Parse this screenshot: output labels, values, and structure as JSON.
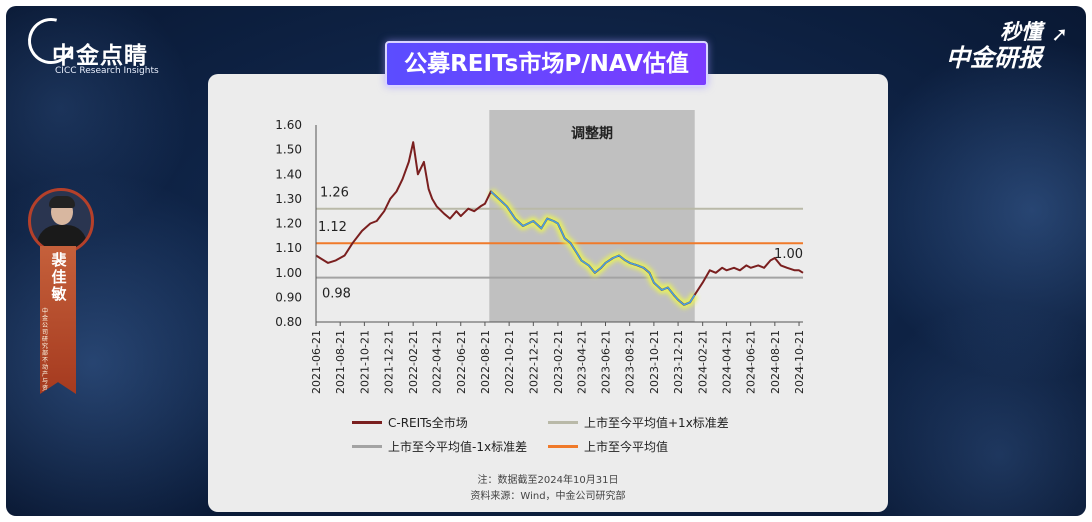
{
  "header": {
    "logo_cn": "中金点睛",
    "logo_en": "CICC Research Insights",
    "brand_line1": "秒懂",
    "brand_line2": "中金研报"
  },
  "presenter": {
    "name": "裴佳敏",
    "certificate": "中金公司研究部不动产与资产服务分析师 SAC执业证书编号：S0080523050003"
  },
  "title": "公募REITs市场P/NAV估值",
  "colors": {
    "series_main": "#7a1f1f",
    "band_upper": "#b9b9a8",
    "band_lower": "#a3a3a3",
    "mean": "#f07a2a",
    "shade": "#b8b8b8",
    "highlight": "#e8f25a",
    "title_bg": "#6a46ff"
  },
  "chart_data": {
    "type": "line",
    "title": "",
    "xlabel": "",
    "ylabel": "",
    "ylim": [
      0.8,
      1.6
    ],
    "yticks": [
      "1.60",
      "1.50",
      "1.40",
      "1.30",
      "1.20",
      "1.10",
      "1.00",
      "0.90",
      "0.80"
    ],
    "x_ticks": [
      "2021-06-21",
      "2021-08-21",
      "2021-10-21",
      "2021-12-21",
      "2022-02-21",
      "2022-04-21",
      "2022-06-21",
      "2022-08-21",
      "2022-10-21",
      "2022-12-21",
      "2023-02-21",
      "2023-04-21",
      "2023-06-21",
      "2023-08-21",
      "2023-10-21",
      "2023-12-21",
      "2024-02-21",
      "2024-04-21",
      "2024-06-21",
      "2024-08-21",
      "2024-10-21"
    ],
    "x_range": [
      "2021-06-21",
      "2024-10-31"
    ],
    "shaded_region": {
      "label": "调整期",
      "start": "2022-09-01",
      "end": "2024-02-01"
    },
    "series": [
      {
        "name": "C-REITs全市场",
        "points": [
          [
            "2021-06-21",
            1.07
          ],
          [
            "2021-07-01",
            1.06
          ],
          [
            "2021-07-21",
            1.04
          ],
          [
            "2021-08-10",
            1.05
          ],
          [
            "2021-09-01",
            1.07
          ],
          [
            "2021-09-21",
            1.12
          ],
          [
            "2021-10-15",
            1.17
          ],
          [
            "2021-11-05",
            1.2
          ],
          [
            "2021-11-21",
            1.21
          ],
          [
            "2021-12-10",
            1.25
          ],
          [
            "2021-12-25",
            1.3
          ],
          [
            "2022-01-10",
            1.33
          ],
          [
            "2022-01-25",
            1.38
          ],
          [
            "2022-02-10",
            1.45
          ],
          [
            "2022-02-21",
            1.53
          ],
          [
            "2022-03-05",
            1.4
          ],
          [
            "2022-03-20",
            1.45
          ],
          [
            "2022-04-01",
            1.34
          ],
          [
            "2022-04-10",
            1.3
          ],
          [
            "2022-04-21",
            1.27
          ],
          [
            "2022-05-10",
            1.24
          ],
          [
            "2022-05-25",
            1.22
          ],
          [
            "2022-06-10",
            1.25
          ],
          [
            "2022-06-21",
            1.23
          ],
          [
            "2022-07-10",
            1.26
          ],
          [
            "2022-07-25",
            1.25
          ],
          [
            "2022-08-10",
            1.27
          ],
          [
            "2022-08-21",
            1.28
          ],
          [
            "2022-09-05",
            1.33
          ],
          [
            "2022-09-25",
            1.3
          ],
          [
            "2022-10-15",
            1.27
          ],
          [
            "2022-11-05",
            1.22
          ],
          [
            "2022-11-25",
            1.19
          ],
          [
            "2022-12-21",
            1.21
          ],
          [
            "2023-01-10",
            1.18
          ],
          [
            "2023-01-25",
            1.22
          ],
          [
            "2023-02-10",
            1.21
          ],
          [
            "2023-02-21",
            1.2
          ],
          [
            "2023-03-10",
            1.14
          ],
          [
            "2023-03-25",
            1.12
          ],
          [
            "2023-04-10",
            1.08
          ],
          [
            "2023-04-21",
            1.05
          ],
          [
            "2023-05-10",
            1.03
          ],
          [
            "2023-05-25",
            1.0
          ],
          [
            "2023-06-10",
            1.02
          ],
          [
            "2023-06-21",
            1.04
          ],
          [
            "2023-07-10",
            1.06
          ],
          [
            "2023-07-25",
            1.07
          ],
          [
            "2023-08-10",
            1.05
          ],
          [
            "2023-08-21",
            1.04
          ],
          [
            "2023-09-10",
            1.03
          ],
          [
            "2023-09-25",
            1.02
          ],
          [
            "2023-10-10",
            1.0
          ],
          [
            "2023-10-21",
            0.96
          ],
          [
            "2023-11-10",
            0.93
          ],
          [
            "2023-11-25",
            0.94
          ],
          [
            "2023-12-10",
            0.91
          ],
          [
            "2023-12-21",
            0.89
          ],
          [
            "2024-01-05",
            0.87
          ],
          [
            "2024-01-20",
            0.88
          ],
          [
            "2024-02-01",
            0.91
          ],
          [
            "2024-02-21",
            0.96
          ],
          [
            "2024-03-10",
            1.01
          ],
          [
            "2024-03-25",
            1.0
          ],
          [
            "2024-04-10",
            1.02
          ],
          [
            "2024-04-21",
            1.01
          ],
          [
            "2024-05-10",
            1.02
          ],
          [
            "2024-05-25",
            1.01
          ],
          [
            "2024-06-10",
            1.03
          ],
          [
            "2024-06-21",
            1.02
          ],
          [
            "2024-07-10",
            1.03
          ],
          [
            "2024-07-25",
            1.02
          ],
          [
            "2024-08-10",
            1.05
          ],
          [
            "2024-08-21",
            1.06
          ],
          [
            "2024-09-05",
            1.03
          ],
          [
            "2024-09-21",
            1.02
          ],
          [
            "2024-10-10",
            1.01
          ],
          [
            "2024-10-21",
            1.01
          ],
          [
            "2024-10-31",
            1.0
          ]
        ]
      },
      {
        "name": "上市至今平均值+1x标准差",
        "value": 1.26
      },
      {
        "name": "上市至今平均值-1x标准差",
        "value": 0.98
      },
      {
        "name": "上市至今平均值",
        "value": 1.12
      }
    ],
    "annotations": [
      "1.26",
      "1.12",
      "0.98",
      "1.00"
    ],
    "legend_position": "bottom"
  },
  "notes": {
    "line1": "注：数据截至2024年10月31日",
    "line2": "资料来源：Wind，中金公司研究部"
  }
}
